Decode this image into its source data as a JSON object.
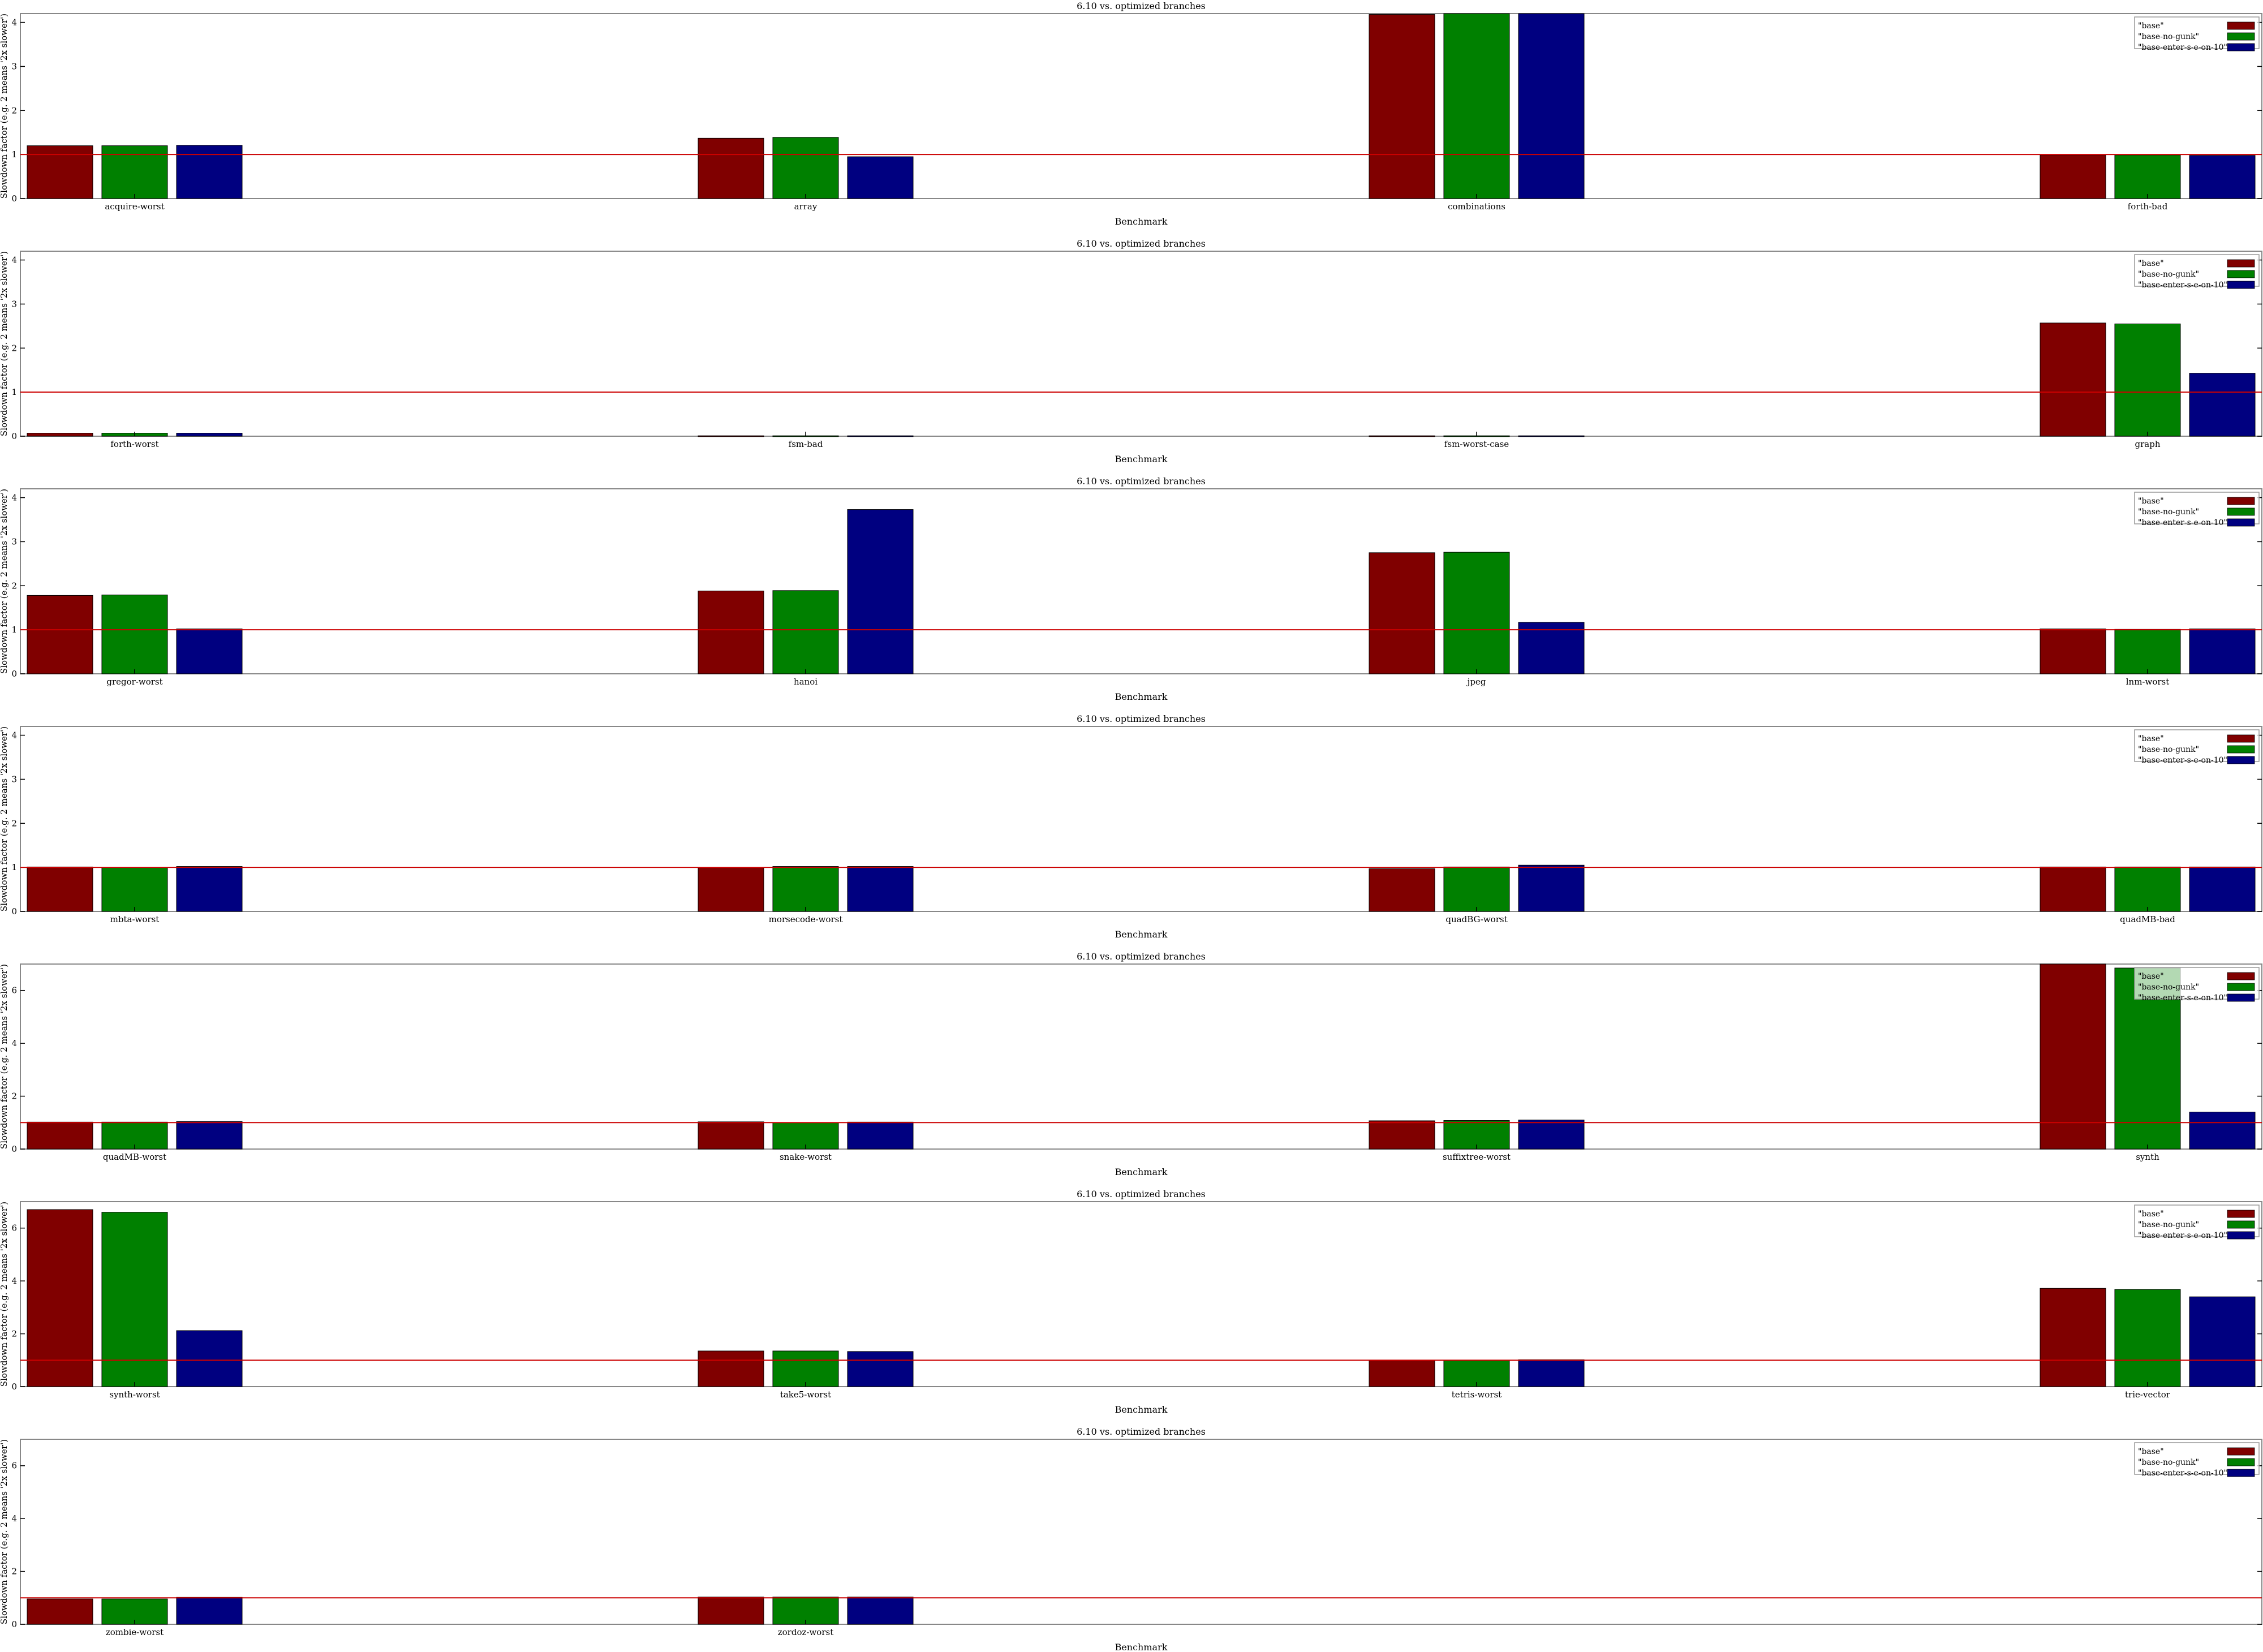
{
  "chart_data": [
    {
      "type": "bar",
      "title": "6.10 vs. optimized branches",
      "xlabel": "Benchmark",
      "ylabel": "Slowdown factor (e.g. 2 means '2x slower')",
      "ylim": [
        0,
        4.2
      ],
      "yticks": [
        0,
        1,
        2,
        3,
        4
      ],
      "categories": [
        "acquire-worst",
        "array",
        "combinations",
        "forth-bad"
      ],
      "series": [
        {
          "name": "\"base\"",
          "values": [
            1.2,
            1.37,
            4.18,
            0.99
          ]
        },
        {
          "name": "\"base-no-gunk\"",
          "values": [
            1.2,
            1.39,
            4.2,
            0.99
          ]
        },
        {
          "name": "\"base-enter-s-e-on-10\"",
          "values": [
            1.21,
            0.95,
            4.2,
            0.98
          ]
        }
      ],
      "reference_line": 1,
      "legend": "top-right",
      "grid": false
    },
    {
      "type": "bar",
      "title": "6.10 vs. optimized branches",
      "xlabel": "Benchmark",
      "ylabel": "Slowdown factor (e.g. 2 means '2x slower')",
      "ylim": [
        0,
        4.2
      ],
      "yticks": [
        0,
        1,
        2,
        3,
        4
      ],
      "categories": [
        "forth-worst",
        "fsm-bad",
        "fsm-worst-case",
        "graph"
      ],
      "series": [
        {
          "name": "\"base\"",
          "values": [
            0.07,
            0.01,
            0.01,
            2.57
          ]
        },
        {
          "name": "\"base-no-gunk\"",
          "values": [
            0.07,
            0.01,
            0.01,
            2.55
          ]
        },
        {
          "name": "\"base-enter-s-e-on-10\"",
          "values": [
            0.07,
            0.01,
            0.01,
            1.43
          ]
        }
      ],
      "reference_line": 1,
      "legend": "top-right",
      "grid": false
    },
    {
      "type": "bar",
      "title": "6.10 vs. optimized branches",
      "xlabel": "Benchmark",
      "ylabel": "Slowdown factor (e.g. 2 means '2x slower')",
      "ylim": [
        0,
        4.2
      ],
      "yticks": [
        0,
        1,
        2,
        3,
        4
      ],
      "categories": [
        "gregor-worst",
        "hanoi",
        "jpeg",
        "lnm-worst"
      ],
      "series": [
        {
          "name": "\"base\"",
          "values": [
            1.78,
            1.88,
            2.75,
            1.02
          ]
        },
        {
          "name": "\"base-no-gunk\"",
          "values": [
            1.79,
            1.89,
            2.76,
            1.01
          ]
        },
        {
          "name": "\"base-enter-s-e-on-10\"",
          "values": [
            1.02,
            3.73,
            1.17,
            1.02
          ]
        }
      ],
      "reference_line": 1,
      "legend": "top-right",
      "grid": false
    },
    {
      "type": "bar",
      "title": "6.10 vs. optimized branches",
      "xlabel": "Benchmark",
      "ylabel": "Slowdown factor (e.g. 2 means '2x slower')",
      "ylim": [
        0,
        4.2
      ],
      "yticks": [
        0,
        1,
        2,
        3,
        4
      ],
      "categories": [
        "mbta-worst",
        "morsecode-worst",
        "quadBG-worst",
        "quadMB-bad"
      ],
      "series": [
        {
          "name": "\"base\"",
          "values": [
            1.01,
            1.0,
            0.97,
            1.01
          ]
        },
        {
          "name": "\"base-no-gunk\"",
          "values": [
            1.0,
            1.02,
            1.01,
            1.01
          ]
        },
        {
          "name": "\"base-enter-s-e-on-10\"",
          "values": [
            1.02,
            1.02,
            1.05,
            1.01
          ]
        }
      ],
      "reference_line": 1,
      "legend": "top-right",
      "grid": false
    },
    {
      "type": "bar",
      "title": "6.10 vs. optimized branches",
      "xlabel": "Benchmark",
      "ylabel": "Slowdown factor (e.g. 2 means '2x slower')",
      "ylim": [
        0,
        7
      ],
      "yticks": [
        0,
        2,
        4,
        6
      ],
      "categories": [
        "quadMB-worst",
        "snake-worst",
        "suffixtree-worst",
        "synth"
      ],
      "series": [
        {
          "name": "\"base\"",
          "values": [
            1.02,
            1.03,
            1.07,
            7.0
          ]
        },
        {
          "name": "\"base-no-gunk\"",
          "values": [
            1.02,
            1.0,
            1.08,
            6.85
          ]
        },
        {
          "name": "\"base-enter-s-e-on-10\"",
          "values": [
            1.04,
            1.02,
            1.1,
            1.4
          ]
        }
      ],
      "reference_line": 1,
      "legend": "top-right",
      "grid": false
    },
    {
      "type": "bar",
      "title": "6.10 vs. optimized branches",
      "xlabel": "Benchmark",
      "ylabel": "Slowdown factor (e.g. 2 means '2x slower')",
      "ylim": [
        0,
        7
      ],
      "yticks": [
        0,
        2,
        4,
        6
      ],
      "categories": [
        "synth-worst",
        "take5-worst",
        "tetris-worst",
        "trie-vector"
      ],
      "series": [
        {
          "name": "\"base\"",
          "values": [
            6.7,
            1.35,
            1.0,
            3.72
          ]
        },
        {
          "name": "\"base-no-gunk\"",
          "values": [
            6.6,
            1.35,
            1.0,
            3.68
          ]
        },
        {
          "name": "\"base-enter-s-e-on-10\"",
          "values": [
            2.12,
            1.33,
            1.02,
            3.4
          ]
        }
      ],
      "reference_line": 1,
      "legend": "top-right",
      "grid": false
    },
    {
      "type": "bar",
      "title": "6.10 vs. optimized branches",
      "xlabel": "Benchmark",
      "ylabel": "Slowdown factor (e.g. 2 means '2x slower')",
      "ylim": [
        0,
        7
      ],
      "yticks": [
        0,
        2,
        4,
        6
      ],
      "categories": [
        "zombie-worst",
        "zordoz-worst"
      ],
      "series": [
        {
          "name": "\"base\"",
          "values": [
            0.96,
            1.03
          ]
        },
        {
          "name": "\"base-no-gunk\"",
          "values": [
            0.96,
            1.03
          ]
        },
        {
          "name": "\"base-enter-s-e-on-10\"",
          "values": [
            1.02,
            1.03
          ]
        }
      ],
      "reference_line": 1,
      "legend": "top-right",
      "grid": false
    }
  ],
  "colors": {
    "series": [
      "#800000",
      "#008000",
      "#000080"
    ],
    "reference_line": "#cc0000",
    "frame": "#888888"
  }
}
